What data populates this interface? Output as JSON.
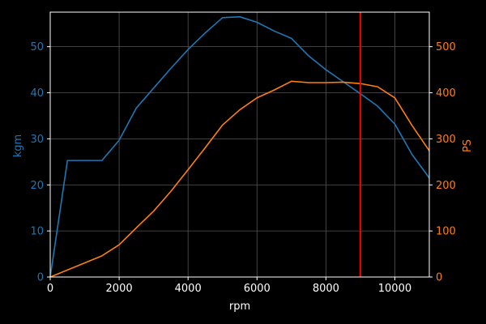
{
  "chart_data": {
    "type": "line",
    "xlabel": "rpm",
    "ylabel_left": "kgm",
    "ylabel_right": "PS",
    "xlim": [
      0,
      11000
    ],
    "ylim_left": [
      0,
      57.5
    ],
    "ylim_right": [
      0,
      575
    ],
    "x_ticks": [
      0,
      2000,
      4000,
      6000,
      8000,
      10000
    ],
    "y_ticks_left": [
      0,
      10,
      20,
      30,
      40,
      50
    ],
    "y_ticks_right": [
      0,
      100,
      200,
      300,
      400,
      500
    ],
    "grid": true,
    "background": "#000000",
    "colors": {
      "torque": "#1f77b4",
      "power": "#ff7f0e",
      "redline": "#ff0000",
      "axes": "#ffffff",
      "grid": "#555555"
    },
    "redline_rpm": 9000,
    "series": [
      {
        "axis": "left",
        "color": "#1f77b4",
        "x": [
          0,
          500,
          1000,
          1500,
          2000,
          2500,
          3000,
          3500,
          4000,
          4500,
          5000,
          5500,
          6000,
          6500,
          7000,
          7500,
          8000,
          8500,
          9000,
          9500,
          10000,
          10500,
          11000
        ],
        "values": [
          0,
          25.3,
          25.3,
          25.3,
          29.7,
          36.7,
          41,
          45.3,
          49.4,
          53,
          56.3,
          56.5,
          55.3,
          53.4,
          51.8,
          48,
          45,
          42.4,
          39.8,
          37.1,
          33.2,
          26.6,
          21.5
        ]
      },
      {
        "axis": "right",
        "color": "#ff7f0e",
        "x": [
          0,
          1500,
          2000,
          2500,
          3000,
          3500,
          4000,
          4500,
          5000,
          5500,
          6000,
          6500,
          7000,
          7500,
          8000,
          8500,
          9000,
          9500,
          10000,
          10500,
          11000
        ],
        "values": [
          0,
          46,
          70,
          107,
          143,
          186,
          233,
          281,
          330,
          363,
          389,
          406,
          425,
          422,
          422,
          423,
          420,
          413,
          389,
          329,
          274
        ]
      }
    ]
  }
}
